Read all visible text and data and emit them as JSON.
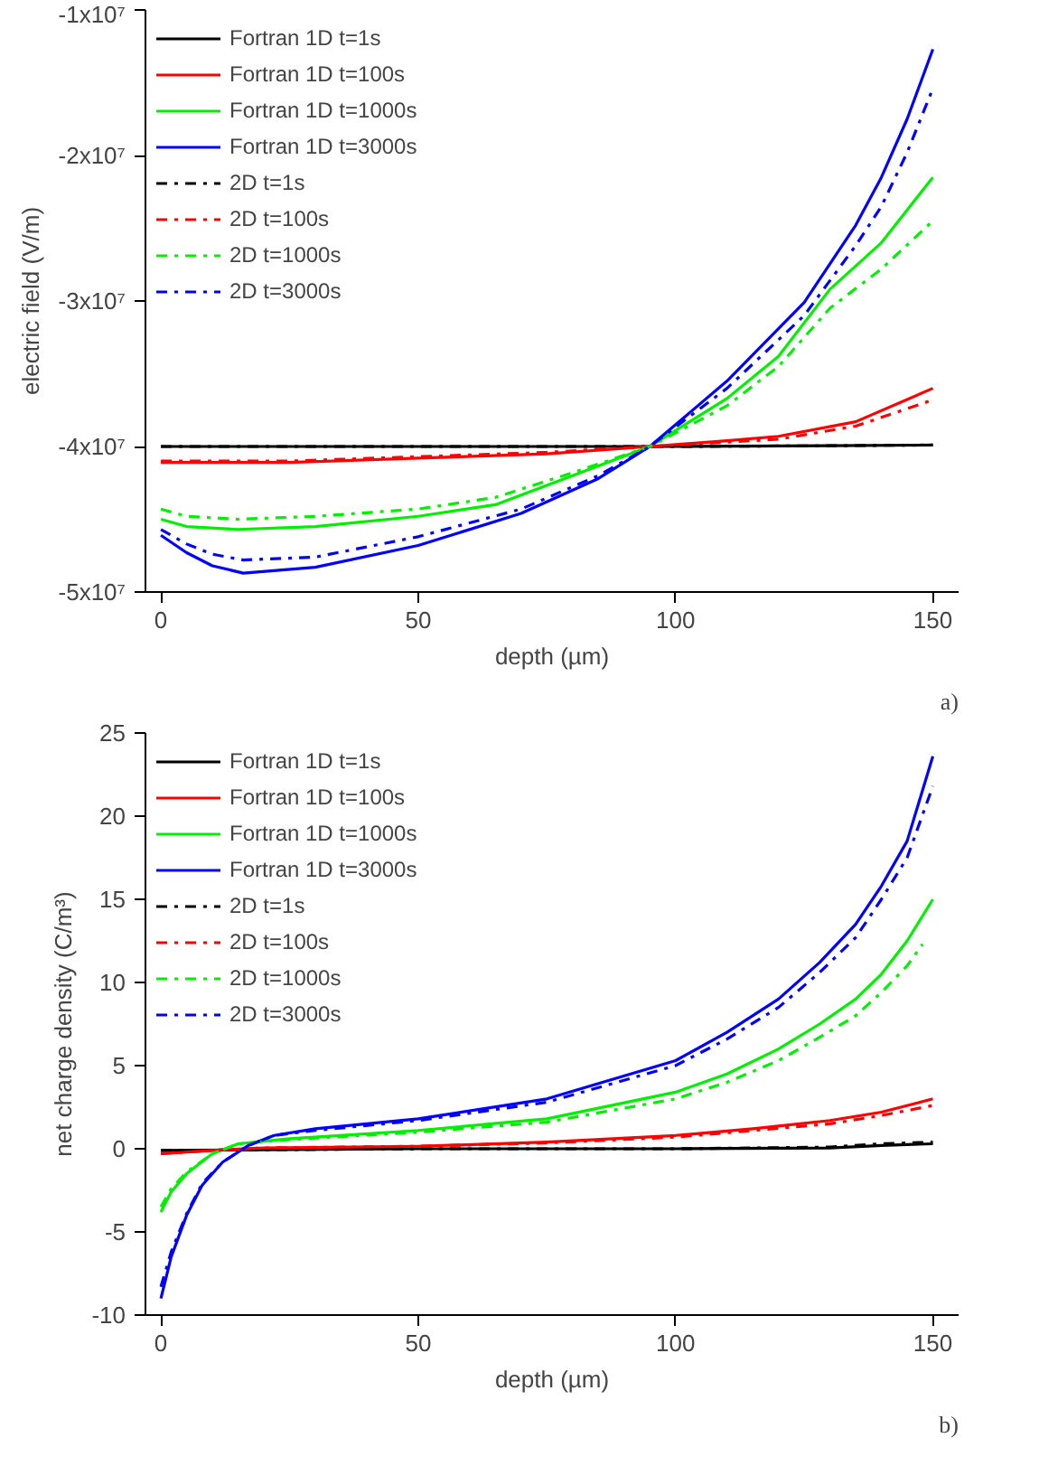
{
  "chart_data": [
    {
      "type": "line",
      "xlabel": "depth (µm)",
      "ylabel": "electric field (V/m)",
      "annotations": [
        "a)"
      ],
      "legend": "top left",
      "grid": false,
      "xlim": [
        -3,
        155
      ],
      "xticks": [
        0,
        50,
        100,
        150
      ],
      "ylim": [
        -50000000,
        -10000000
      ],
      "yticks": [
        {
          "value": -50000000,
          "label": "-5x10⁷"
        },
        {
          "value": -40000000,
          "label": "-4x10⁷"
        },
        {
          "value": -30000000,
          "label": "-3x10⁷"
        },
        {
          "value": -20000000,
          "label": "-2x10⁷"
        },
        {
          "value": -10000000,
          "label": "-1x10⁷"
        }
      ],
      "series": [
        {
          "name": "Fortran 1D t=1s",
          "color": "#000000",
          "line_style": "solid",
          "x": [
            0,
            50,
            100,
            130,
            150
          ],
          "values": [
            -40000000,
            -40000000,
            -40000000,
            -39950000,
            -39900000
          ]
        },
        {
          "name": "Fortran 1D t=100s",
          "color": "#ff0000",
          "line_style": "solid",
          "x": [
            0,
            25,
            50,
            75,
            95,
            110,
            120,
            135,
            150
          ],
          "values": [
            -41100000,
            -41100000,
            -40800000,
            -40500000,
            -40000000,
            -39600000,
            -39300000,
            -38300000,
            -36000000
          ]
        },
        {
          "name": "Fortran 1D t=1000s",
          "color": "#00ee00",
          "line_style": "solid",
          "x": [
            0,
            5,
            15,
            30,
            50,
            65,
            80,
            95,
            110,
            120,
            130,
            140,
            150
          ],
          "values": [
            -45000000,
            -45500000,
            -45700000,
            -45500000,
            -44800000,
            -44000000,
            -42000000,
            -40000000,
            -36700000,
            -33800000,
            -29200000,
            -26000000,
            -21500000
          ]
        },
        {
          "name": "Fortran 1D t=3000s",
          "color": "#0000ff",
          "line_style": "solid",
          "x": [
            0,
            5,
            10,
            16,
            30,
            50,
            70,
            85,
            95,
            110,
            125,
            135,
            140,
            145,
            150
          ],
          "values": [
            -46100000,
            -47300000,
            -48200000,
            -48700000,
            -48300000,
            -46800000,
            -44600000,
            -42200000,
            -40000000,
            -35500000,
            -30100000,
            -24800000,
            -21500000,
            -17500000,
            -12700000
          ]
        },
        {
          "name": "2D t=1s",
          "color": "#000000",
          "line_style": "dashdot",
          "x": [
            0,
            50,
            100,
            130,
            150
          ],
          "values": [
            -40000000,
            -40000000,
            -40000000,
            -39950000,
            -39900000
          ]
        },
        {
          "name": "2D t=100s",
          "color": "#ff0000",
          "line_style": "dashdot",
          "x": [
            0,
            25,
            50,
            75,
            95,
            110,
            120,
            135,
            150
          ],
          "values": [
            -41000000,
            -41000000,
            -40700000,
            -40400000,
            -40000000,
            -39700000,
            -39500000,
            -38600000,
            -36800000
          ]
        },
        {
          "name": "2D t=1000s",
          "color": "#00ee00",
          "line_style": "dashdot",
          "x": [
            0,
            5,
            15,
            30,
            50,
            65,
            80,
            95,
            110,
            120,
            130,
            140,
            150
          ],
          "values": [
            -44300000,
            -44800000,
            -45000000,
            -44800000,
            -44300000,
            -43500000,
            -41800000,
            -40000000,
            -37200000,
            -34500000,
            -30500000,
            -27800000,
            -24500000
          ]
        },
        {
          "name": "2D t=3000s",
          "color": "#0000ff",
          "line_style": "dashdot",
          "x": [
            0,
            5,
            10,
            16,
            30,
            50,
            70,
            85,
            95,
            110,
            125,
            135,
            140,
            145,
            150
          ],
          "values": [
            -45700000,
            -46700000,
            -47400000,
            -47800000,
            -47600000,
            -46200000,
            -44300000,
            -42000000,
            -40000000,
            -36000000,
            -31000000,
            -26200000,
            -23500000,
            -19800000,
            -15400000
          ]
        }
      ]
    },
    {
      "type": "line",
      "xlabel": "depth (µm)",
      "ylabel": "net charge density (C/m³)",
      "annotations": [
        "b)"
      ],
      "legend": "top left",
      "grid": false,
      "xlim": [
        -3,
        155
      ],
      "xticks": [
        0,
        50,
        100,
        150
      ],
      "ylim": [
        -10,
        25
      ],
      "yticks": [
        -10,
        -5,
        0,
        5,
        10,
        15,
        20,
        25
      ],
      "series": [
        {
          "name": "Fortran 1D t=1s",
          "color": "#000000",
          "line_style": "solid",
          "x": [
            0,
            50,
            100,
            130,
            140,
            150
          ],
          "values": [
            -0.1,
            0,
            0,
            0.05,
            0.2,
            0.3
          ]
        },
        {
          "name": "Fortran 1D t=100s",
          "color": "#ff0000",
          "line_style": "solid",
          "x": [
            0,
            10,
            20,
            50,
            75,
            100,
            115,
            130,
            140,
            150
          ],
          "values": [
            -0.3,
            -0.1,
            0.05,
            0.15,
            0.4,
            0.8,
            1.2,
            1.7,
            2.2,
            3.0
          ]
        },
        {
          "name": "Fortran 1D t=1000s",
          "color": "#00ee00",
          "line_style": "solid",
          "x": [
            0,
            2,
            5,
            10,
            15,
            25,
            50,
            75,
            100,
            110,
            120,
            128,
            135,
            140,
            145,
            150
          ],
          "values": [
            -3.8,
            -2.6,
            -1.5,
            -0.3,
            0.3,
            0.6,
            1.1,
            1.8,
            3.4,
            4.5,
            6.0,
            7.5,
            9.0,
            10.5,
            12.5,
            15.0
          ]
        },
        {
          "name": "Fortran 1D t=3000s",
          "color": "#0000ff",
          "line_style": "solid",
          "x": [
            0,
            2,
            5,
            8,
            12,
            17,
            22,
            30,
            50,
            75,
            100,
            110,
            120,
            128,
            135,
            140,
            145,
            150
          ],
          "values": [
            -9.0,
            -6.5,
            -4.0,
            -2.2,
            -0.8,
            0.2,
            0.8,
            1.2,
            1.8,
            3.0,
            5.3,
            7.0,
            9.0,
            11.2,
            13.5,
            15.8,
            18.5,
            23.6
          ]
        },
        {
          "name": "2D t=1s",
          "color": "#000000",
          "line_style": "dashdot",
          "x": [
            0,
            50,
            100,
            130,
            140,
            150
          ],
          "values": [
            -0.1,
            0,
            0,
            0.1,
            0.3,
            0.4
          ]
        },
        {
          "name": "2D t=100s",
          "color": "#ff0000",
          "line_style": "dashdot",
          "x": [
            0,
            10,
            20,
            50,
            75,
            100,
            115,
            130,
            140,
            150
          ],
          "values": [
            -0.3,
            -0.1,
            0.05,
            0.15,
            0.35,
            0.7,
            1.1,
            1.5,
            2.0,
            2.6
          ]
        },
        {
          "name": "2D t=1000s",
          "color": "#00ee00",
          "line_style": "dashdot",
          "x": [
            0,
            2,
            5,
            10,
            15,
            25,
            50,
            75,
            100,
            110,
            120,
            128,
            135,
            140,
            145,
            148
          ],
          "values": [
            -3.5,
            -2.4,
            -1.4,
            -0.3,
            0.3,
            0.55,
            1.0,
            1.6,
            3.0,
            4.0,
            5.3,
            6.7,
            8.0,
            9.4,
            11.0,
            12.3
          ]
        },
        {
          "name": "2D t=3000s",
          "color": "#0000ff",
          "line_style": "dashdot",
          "x": [
            0,
            2,
            5,
            8,
            12,
            17,
            22,
            30,
            50,
            75,
            100,
            110,
            120,
            128,
            135,
            140,
            145,
            150
          ],
          "values": [
            -8.3,
            -6.2,
            -3.9,
            -2.1,
            -0.8,
            0.2,
            0.8,
            1.1,
            1.7,
            2.8,
            5.0,
            6.6,
            8.5,
            10.6,
            12.7,
            15.0,
            17.5,
            21.8
          ]
        }
      ]
    }
  ]
}
